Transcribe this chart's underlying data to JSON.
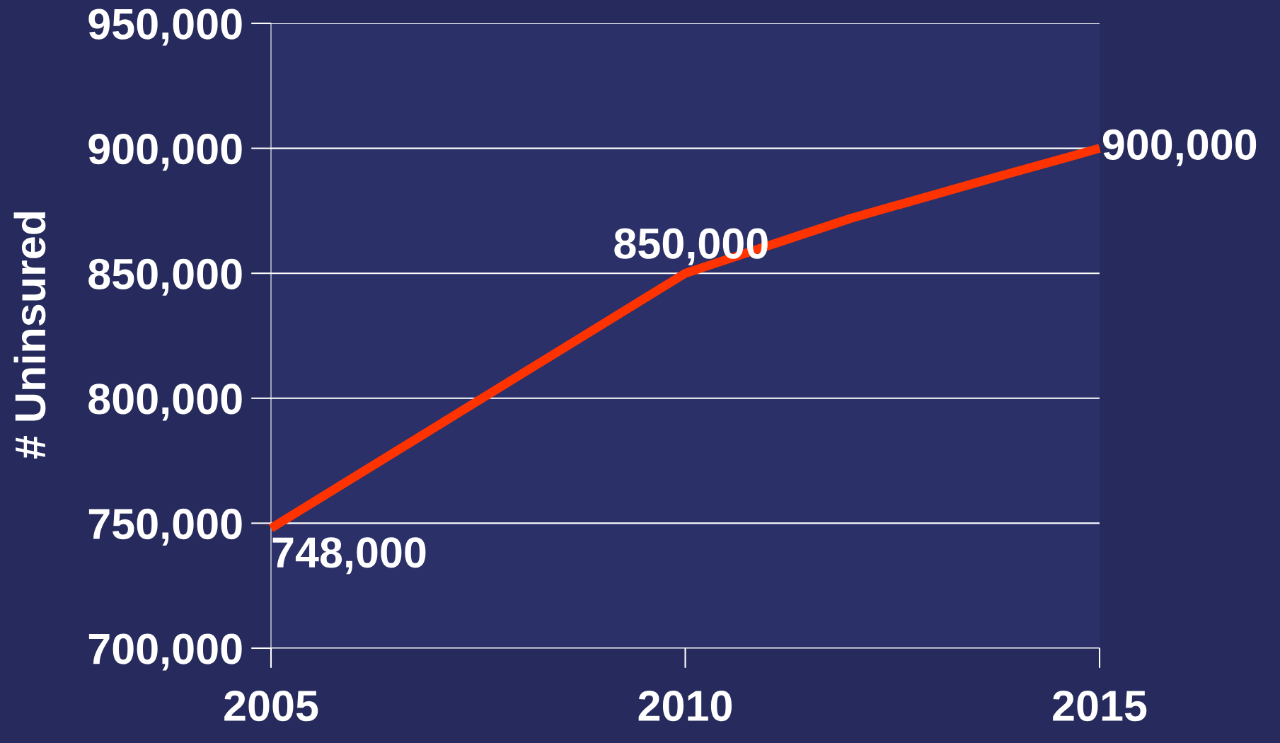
{
  "chart_data": {
    "type": "line",
    "ylabel": "# Uninsured",
    "x": [
      2005,
      2010,
      2012,
      2013.7,
      2015
    ],
    "series": [
      {
        "color": "#ff3300",
        "values": [
          748000,
          850000,
          872000,
          888000,
          900000
        ],
        "value_labels": [
          "748,000",
          "850,000",
          null,
          null,
          "900,000"
        ]
      }
    ],
    "xlim": [
      2005,
      2015
    ],
    "xticks": [
      2005,
      2010,
      2015
    ],
    "ylim": [
      700000,
      950000
    ],
    "yticks": [
      {
        "value": 700000,
        "label": "700,000"
      },
      {
        "value": 750000,
        "label": "750,000"
      },
      {
        "value": 800000,
        "label": "800,000"
      },
      {
        "value": 850000,
        "label": "850,000"
      },
      {
        "value": 900000,
        "label": "900,000"
      },
      {
        "value": 950000,
        "label": "950,000"
      }
    ],
    "grid": "y",
    "marker": "none",
    "line_style": "solid"
  }
}
